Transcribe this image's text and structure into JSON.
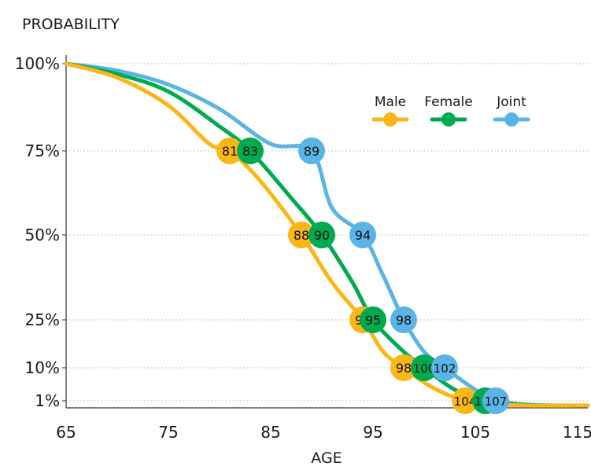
{
  "chart_data": {
    "type": "line",
    "ylabel": "PROBABILITY",
    "xlabel": "AGE",
    "xlim": [
      65,
      116
    ],
    "x_ticks": [
      "65",
      "75",
      "85",
      "95",
      "105",
      "115"
    ],
    "y_ticks": [
      "100%",
      "75%",
      "50%",
      "25%",
      "10%",
      "1%"
    ],
    "y_scale": "custom (labels at 100, 75, 50, 25, 10, 1 percent)",
    "grid": "horizontal dotted",
    "legend_position": "top-right",
    "series": [
      {
        "name": "Male",
        "color": "#fbb617",
        "curve": [
          [
            65,
            100
          ],
          [
            70,
            96
          ],
          [
            75,
            88
          ],
          [
            79,
            77
          ],
          [
            81,
            75
          ],
          [
            84,
            66
          ],
          [
            88,
            50
          ],
          [
            91,
            36
          ],
          [
            94,
            25
          ],
          [
            96,
            15
          ],
          [
            98,
            10
          ],
          [
            100,
            6
          ],
          [
            102,
            3
          ],
          [
            104,
            1
          ],
          [
            106,
            0.4
          ],
          [
            110,
            0
          ],
          [
            116,
            0
          ]
        ],
        "markers": [
          {
            "age": 81,
            "label": "81",
            "percent": 75
          },
          {
            "age": 88,
            "label": "88",
            "percent": 50
          },
          {
            "age": 94,
            "label": "94",
            "percent": 25
          },
          {
            "age": 98,
            "label": "98",
            "percent": 10
          },
          {
            "age": 104,
            "label": "104",
            "percent": 1
          }
        ]
      },
      {
        "name": "Female",
        "color": "#00aa4f",
        "curve": [
          [
            65,
            100
          ],
          [
            70,
            97
          ],
          [
            75,
            92
          ],
          [
            80,
            82
          ],
          [
            83,
            75
          ],
          [
            87,
            61
          ],
          [
            90,
            50
          ],
          [
            93,
            36
          ],
          [
            95,
            25
          ],
          [
            98,
            15
          ],
          [
            100,
            10
          ],
          [
            103,
            4
          ],
          [
            106,
            1
          ],
          [
            109,
            0.2
          ],
          [
            112,
            0
          ],
          [
            116,
            0
          ]
        ],
        "markers": [
          {
            "age": 83,
            "label": "83",
            "percent": 75
          },
          {
            "age": 90,
            "label": "90",
            "percent": 50
          },
          {
            "age": 95,
            "label": "95",
            "percent": 25
          },
          {
            "age": 100,
            "label": "100",
            "percent": 10
          },
          {
            "age": 106,
            "label": "106",
            "percent": 1
          }
        ]
      },
      {
        "name": "Joint",
        "color": "#5ab4e6",
        "curve": [
          [
            65,
            100
          ],
          [
            70,
            98
          ],
          [
            75,
            94
          ],
          [
            80,
            87
          ],
          [
            85,
            77
          ],
          [
            89,
            75
          ],
          [
            91,
            58
          ],
          [
            94,
            50
          ],
          [
            96,
            38
          ],
          [
            98,
            25
          ],
          [
            100,
            15
          ],
          [
            102,
            10
          ],
          [
            105,
            4
          ],
          [
            107,
            1
          ],
          [
            110,
            0.2
          ],
          [
            113,
            0
          ],
          [
            116,
            0
          ]
        ],
        "markers": [
          {
            "age": 89,
            "label": "89",
            "percent": 75
          },
          {
            "age": 94,
            "label": "94",
            "percent": 50
          },
          {
            "age": 98,
            "label": "98",
            "percent": 25
          },
          {
            "age": 102,
            "label": "102",
            "percent": 10
          },
          {
            "age": 107,
            "label": "107",
            "percent": 1
          }
        ]
      }
    ]
  }
}
